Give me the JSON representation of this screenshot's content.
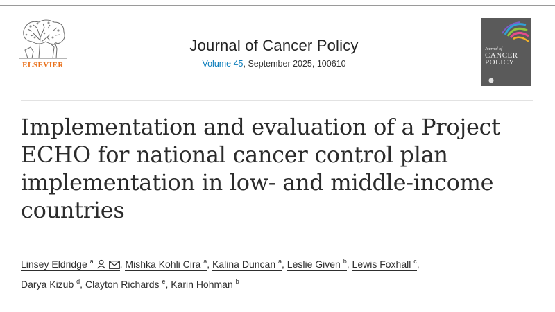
{
  "publisher": {
    "name": "ELSEVIER",
    "colors": {
      "brand": "#e9711c"
    }
  },
  "journal": {
    "title": "Journal of Cancer Policy",
    "volume_label": "Volume 45",
    "issue_rest": ", September 2025, 100610",
    "link_color": "#0c7dbb"
  },
  "cover": {
    "line1": "Journal of",
    "line2": "CANCER",
    "line3": "POLICY"
  },
  "article": {
    "title": "Implementation and evaluation of a Project ECHO for national cancer control plan implementation in low- and middle-income countries"
  },
  "authors": [
    {
      "name": "Linsey Eldridge",
      "aff": "a",
      "icons": [
        "person-icon",
        "mail-icon"
      ]
    },
    {
      "name": "Mishka Kohli Cira",
      "aff": "a"
    },
    {
      "name": "Kalina Duncan",
      "aff": "a"
    },
    {
      "name": "Leslie Given",
      "aff": "b"
    },
    {
      "name": "Lewis Foxhall",
      "aff": "c"
    },
    {
      "name": "Darya Kizub",
      "aff": "d"
    },
    {
      "name": "Clayton Richards",
      "aff": "e"
    },
    {
      "name": "Karin Hohman",
      "aff": "b"
    }
  ],
  "separator": ","
}
